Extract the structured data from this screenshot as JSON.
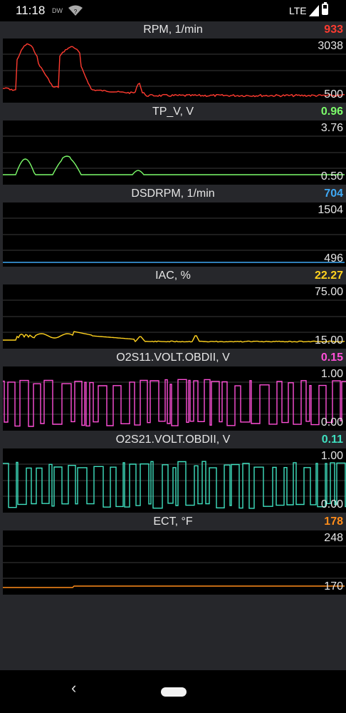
{
  "status_bar": {
    "time": "11:18",
    "app_badge": "DW",
    "network": "LTE",
    "icons": [
      "wifi-question-icon",
      "signal-icon",
      "battery-icon"
    ]
  },
  "panels": [
    {
      "title": "RPM, 1/min",
      "current": "933",
      "max_label": "3038",
      "min_label": "500",
      "color": "#ff3b30",
      "kind": "rpm"
    },
    {
      "title": "TP_V, V",
      "current": "0.96",
      "max_label": "3.76",
      "min_label": "0.50",
      "color": "#7CFC6A",
      "kind": "tp"
    },
    {
      "title": "DSDRPM, 1/min",
      "current": "704",
      "max_label": "1504",
      "min_label": "496",
      "color": "#3fa9f5",
      "kind": "flat"
    },
    {
      "title": "IAC, %",
      "current": "22.27",
      "max_label": "75.00",
      "min_label": "15.00",
      "color": "#ffd21f",
      "kind": "iac"
    },
    {
      "title": "O2S11.VOLT.OBDII, V",
      "current": "0.15",
      "max_label": "1.00",
      "min_label": "0.00",
      "color": "#ff4fd8",
      "kind": "o2a"
    },
    {
      "title": "O2S21.VOLT.OBDII, V",
      "current": "0.11",
      "max_label": "1.00",
      "min_label": "0.00",
      "color": "#3fe0c0",
      "kind": "o2b"
    },
    {
      "title": "ECT, °F",
      "current": "178",
      "max_label": "248",
      "min_label": "170",
      "color": "#ff8c1a",
      "kind": "ect"
    }
  ],
  "nav": {
    "back_glyph": "‹",
    "icons": [
      "back-icon",
      "home-pill-icon"
    ]
  }
}
